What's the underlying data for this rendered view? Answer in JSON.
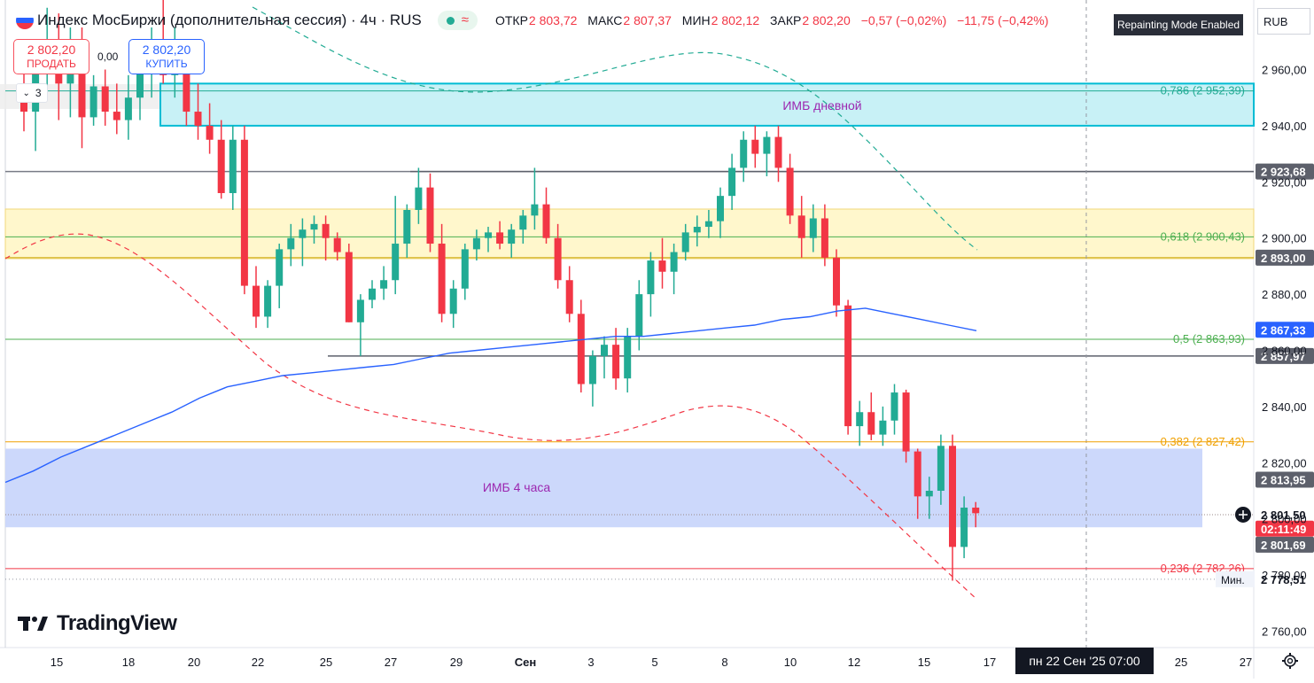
{
  "header": {
    "title": "Индекс МосБиржи (дополнительная сессия) · 4ч · RUS",
    "ohlc": [
      {
        "label": "ОТКР",
        "value": "2 803,72"
      },
      {
        "label": "МАКС",
        "value": "2 807,37"
      },
      {
        "label": "МИН",
        "value": "2 802,12"
      },
      {
        "label": "ЗАКР",
        "value": "2 802,20"
      }
    ],
    "change": "−0,57 (−0,02%)",
    "change2": "−11,75 (−0,42%)",
    "repaint_badge": "Repainting Mode Enabled",
    "currency": "RUB"
  },
  "trade": {
    "sell_price": "2 802,20",
    "sell_label": "ПРОДАТЬ",
    "buy_price": "2 802,20",
    "buy_label": "КУПИТЬ",
    "spread": "0,00"
  },
  "indicators_count": "3",
  "brand": "TradingView",
  "crosshair_time": "пн 22 Сен '25   07:00",
  "colors": {
    "up": "#22ab94",
    "down": "#f23645",
    "ma": "#2962ff",
    "imb_daily": "#00bcd4",
    "imb_4h": "#6e8cf4",
    "fib_618": "#4caf50",
    "fib_382": "#f0a000",
    "fib_236": "#f23645"
  },
  "chart_data": {
    "type": "candlestick",
    "y_range": [
      2752,
      2990
    ],
    "y_ticks": [
      "2 760,00",
      "2 780,00",
      "2 800,00",
      "2 820,00",
      "2 840,00",
      "2 860,00",
      "2 880,00",
      "2 900,00",
      "2 920,00",
      "2 940,00",
      "2 960,00"
    ],
    "x_ticks": [
      "15",
      "18",
      "20",
      "22",
      "25",
      "27",
      "29",
      "Сен",
      "3",
      "5",
      "8",
      "10",
      "12",
      "15",
      "17",
      "25",
      "27"
    ],
    "zones": [
      {
        "label": "ИМБ дневной",
        "from": 2940,
        "to": 2955
      },
      {
        "label": "ИМБ 4 часа",
        "from": 2797,
        "to": 2825
      }
    ],
    "fib_levels": [
      {
        "label": "0,786 (2 952,39)",
        "value": 2952.39
      },
      {
        "label": "0,618 (2 900,43)",
        "value": 2900.43
      },
      {
        "label": "0,5 (2 863,93)",
        "value": 2863.93
      },
      {
        "label": "0,382 (2 827,42)",
        "value": 2827.42
      },
      {
        "label": "0,236 (2 782,26)",
        "value": 2782.26
      }
    ],
    "price_tags": [
      {
        "label": "2 923,68",
        "kind": "level"
      },
      {
        "label": "2 893,00",
        "kind": "level"
      },
      {
        "label": "2 867,33",
        "kind": "ma"
      },
      {
        "label": "2 857,97",
        "kind": "level"
      },
      {
        "label": "2 813,95",
        "kind": "level"
      },
      {
        "label": "2 801,50",
        "kind": "cursor"
      },
      {
        "label": "02:11:49",
        "kind": "countdown"
      },
      {
        "label": "2 801,69",
        "kind": "level"
      },
      {
        "label": "2 778,51",
        "kind": "min",
        "prefix": "Мин."
      }
    ],
    "ma_series": [
      2813,
      2817,
      2822,
      2826,
      2830,
      2834,
      2838,
      2843,
      2847,
      2849,
      2851,
      2852,
      2853,
      2854,
      2855,
      2857,
      2859,
      2860,
      2861,
      2862,
      2863,
      2864,
      2865,
      2865,
      2866,
      2867,
      2868,
      2869,
      2871,
      2872,
      2874,
      2875,
      2873,
      2871,
      2869,
      2867
    ],
    "candles": [
      [
        2953,
        2966,
        2938,
        2945
      ],
      [
        2945,
        2962,
        2931,
        2960
      ],
      [
        2960,
        2982,
        2950,
        2970
      ],
      [
        2970,
        2980,
        2942,
        2955
      ],
      [
        2955,
        2975,
        2943,
        2962
      ],
      [
        2962,
        2975,
        2932,
        2943
      ],
      [
        2943,
        2958,
        2940,
        2954
      ],
      [
        2954,
        2960,
        2940,
        2945
      ],
      [
        2945,
        2955,
        2937,
        2942
      ],
      [
        2942,
        2958,
        2935,
        2950
      ],
      [
        2950,
        2965,
        2942,
        2960
      ],
      [
        2960,
        2975,
        2950,
        2968
      ],
      [
        2968,
        2985,
        2955,
        2958
      ],
      [
        2958,
        2975,
        2950,
        2960
      ],
      [
        2960,
        2968,
        2940,
        2945
      ],
      [
        2945,
        2955,
        2935,
        2940
      ],
      [
        2940,
        2948,
        2930,
        2935
      ],
      [
        2935,
        2942,
        2914,
        2916
      ],
      [
        2916,
        2940,
        2910,
        2935
      ],
      [
        2935,
        2940,
        2880,
        2883
      ],
      [
        2883,
        2890,
        2868,
        2872
      ],
      [
        2872,
        2885,
        2868,
        2883
      ],
      [
        2883,
        2898,
        2875,
        2896
      ],
      [
        2896,
        2905,
        2890,
        2900
      ],
      [
        2900,
        2907,
        2890,
        2903
      ],
      [
        2903,
        2908,
        2898,
        2905
      ],
      [
        2905,
        2908,
        2892,
        2900
      ],
      [
        2900,
        2902,
        2892,
        2895
      ],
      [
        2895,
        2898,
        2870,
        2870
      ],
      [
        2870,
        2880,
        2858,
        2878
      ],
      [
        2878,
        2885,
        2875,
        2882
      ],
      [
        2882,
        2890,
        2878,
        2885
      ],
      [
        2885,
        2915,
        2880,
        2898
      ],
      [
        2898,
        2912,
        2893,
        2910
      ],
      [
        2910,
        2925,
        2905,
        2918
      ],
      [
        2918,
        2923,
        2895,
        2898
      ],
      [
        2898,
        2905,
        2870,
        2873
      ],
      [
        2873,
        2885,
        2868,
        2882
      ],
      [
        2882,
        2898,
        2878,
        2896
      ],
      [
        2896,
        2903,
        2892,
        2900
      ],
      [
        2900,
        2904,
        2895,
        2902
      ],
      [
        2902,
        2906,
        2896,
        2898
      ],
      [
        2898,
        2905,
        2893,
        2903
      ],
      [
        2903,
        2910,
        2898,
        2908
      ],
      [
        2908,
        2925,
        2903,
        2912
      ],
      [
        2912,
        2918,
        2898,
        2900
      ],
      [
        2900,
        2905,
        2882,
        2885
      ],
      [
        2885,
        2890,
        2870,
        2873
      ],
      [
        2873,
        2878,
        2845,
        2848
      ],
      [
        2848,
        2860,
        2840,
        2858
      ],
      [
        2858,
        2865,
        2850,
        2862
      ],
      [
        2862,
        2868,
        2846,
        2850
      ],
      [
        2850,
        2868,
        2845,
        2865
      ],
      [
        2865,
        2885,
        2860,
        2880
      ],
      [
        2880,
        2895,
        2872,
        2892
      ],
      [
        2892,
        2900,
        2882,
        2888
      ],
      [
        2888,
        2898,
        2880,
        2895
      ],
      [
        2895,
        2905,
        2892,
        2902
      ],
      [
        2902,
        2908,
        2897,
        2904
      ],
      [
        2904,
        2910,
        2900,
        2906
      ],
      [
        2906,
        2918,
        2900,
        2915
      ],
      [
        2915,
        2930,
        2910,
        2925
      ],
      [
        2925,
        2938,
        2920,
        2935
      ],
      [
        2935,
        2940,
        2925,
        2930
      ],
      [
        2930,
        2938,
        2922,
        2936
      ],
      [
        2936,
        2940,
        2920,
        2925
      ],
      [
        2925,
        2930,
        2905,
        2908
      ],
      [
        2908,
        2915,
        2893,
        2900
      ],
      [
        2900,
        2912,
        2895,
        2907
      ],
      [
        2907,
        2912,
        2890,
        2893
      ],
      [
        2893,
        2896,
        2872,
        2876
      ],
      [
        2876,
        2878,
        2830,
        2833
      ],
      [
        2833,
        2842,
        2826,
        2838
      ],
      [
        2838,
        2845,
        2828,
        2830
      ],
      [
        2830,
        2840,
        2826,
        2835
      ],
      [
        2835,
        2848,
        2830,
        2845
      ],
      [
        2845,
        2846,
        2820,
        2824
      ],
      [
        2824,
        2825,
        2800,
        2808
      ],
      [
        2808,
        2815,
        2800,
        2810
      ],
      [
        2810,
        2830,
        2805,
        2826
      ],
      [
        2826,
        2830,
        2778,
        2790
      ],
      [
        2790,
        2808,
        2786,
        2804
      ],
      [
        2804,
        2806,
        2797,
        2802
      ]
    ]
  }
}
